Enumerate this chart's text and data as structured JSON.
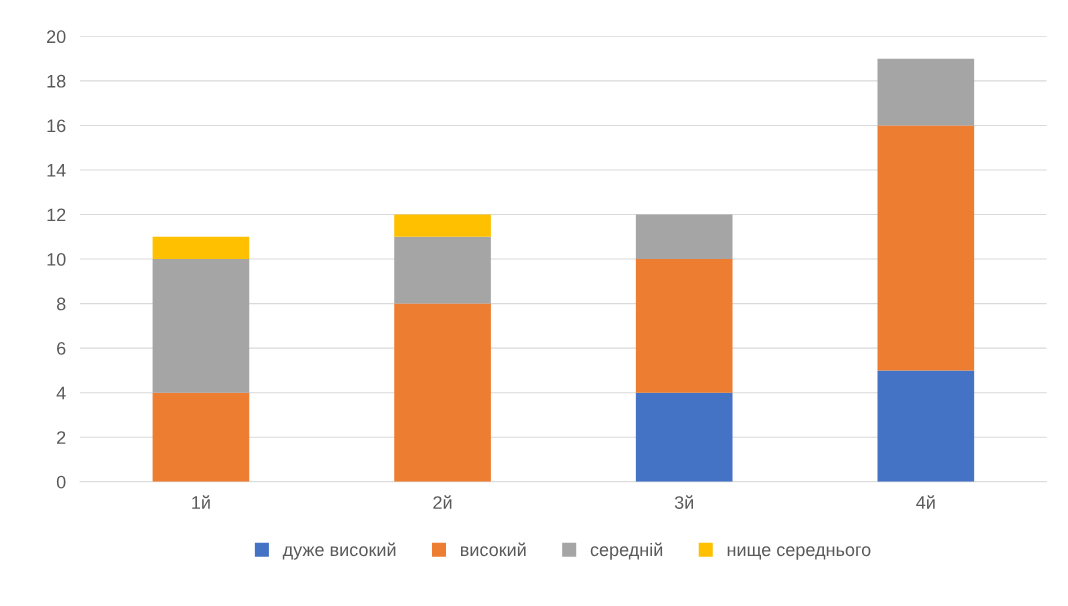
{
  "chart_data": {
    "type": "bar",
    "stacked": true,
    "categories": [
      "1й",
      "2й",
      "3й",
      "4й"
    ],
    "series": [
      {
        "name": "дуже високий",
        "color": "#4472c4",
        "values": [
          0,
          0,
          4,
          5
        ]
      },
      {
        "name": "високий",
        "color": "#ed7d31",
        "values": [
          4,
          8,
          6,
          11
        ]
      },
      {
        "name": "середній",
        "color": "#a5a5a5",
        "values": [
          6,
          3,
          2,
          3
        ]
      },
      {
        "name": "нище середнього",
        "color": "#ffc000",
        "values": [
          1,
          1,
          0,
          0
        ]
      }
    ],
    "ylim": [
      0,
      20
    ],
    "yticks": [
      0,
      2,
      4,
      6,
      8,
      10,
      12,
      14,
      16,
      18,
      20
    ],
    "grid": "y",
    "legend": "bottom"
  }
}
